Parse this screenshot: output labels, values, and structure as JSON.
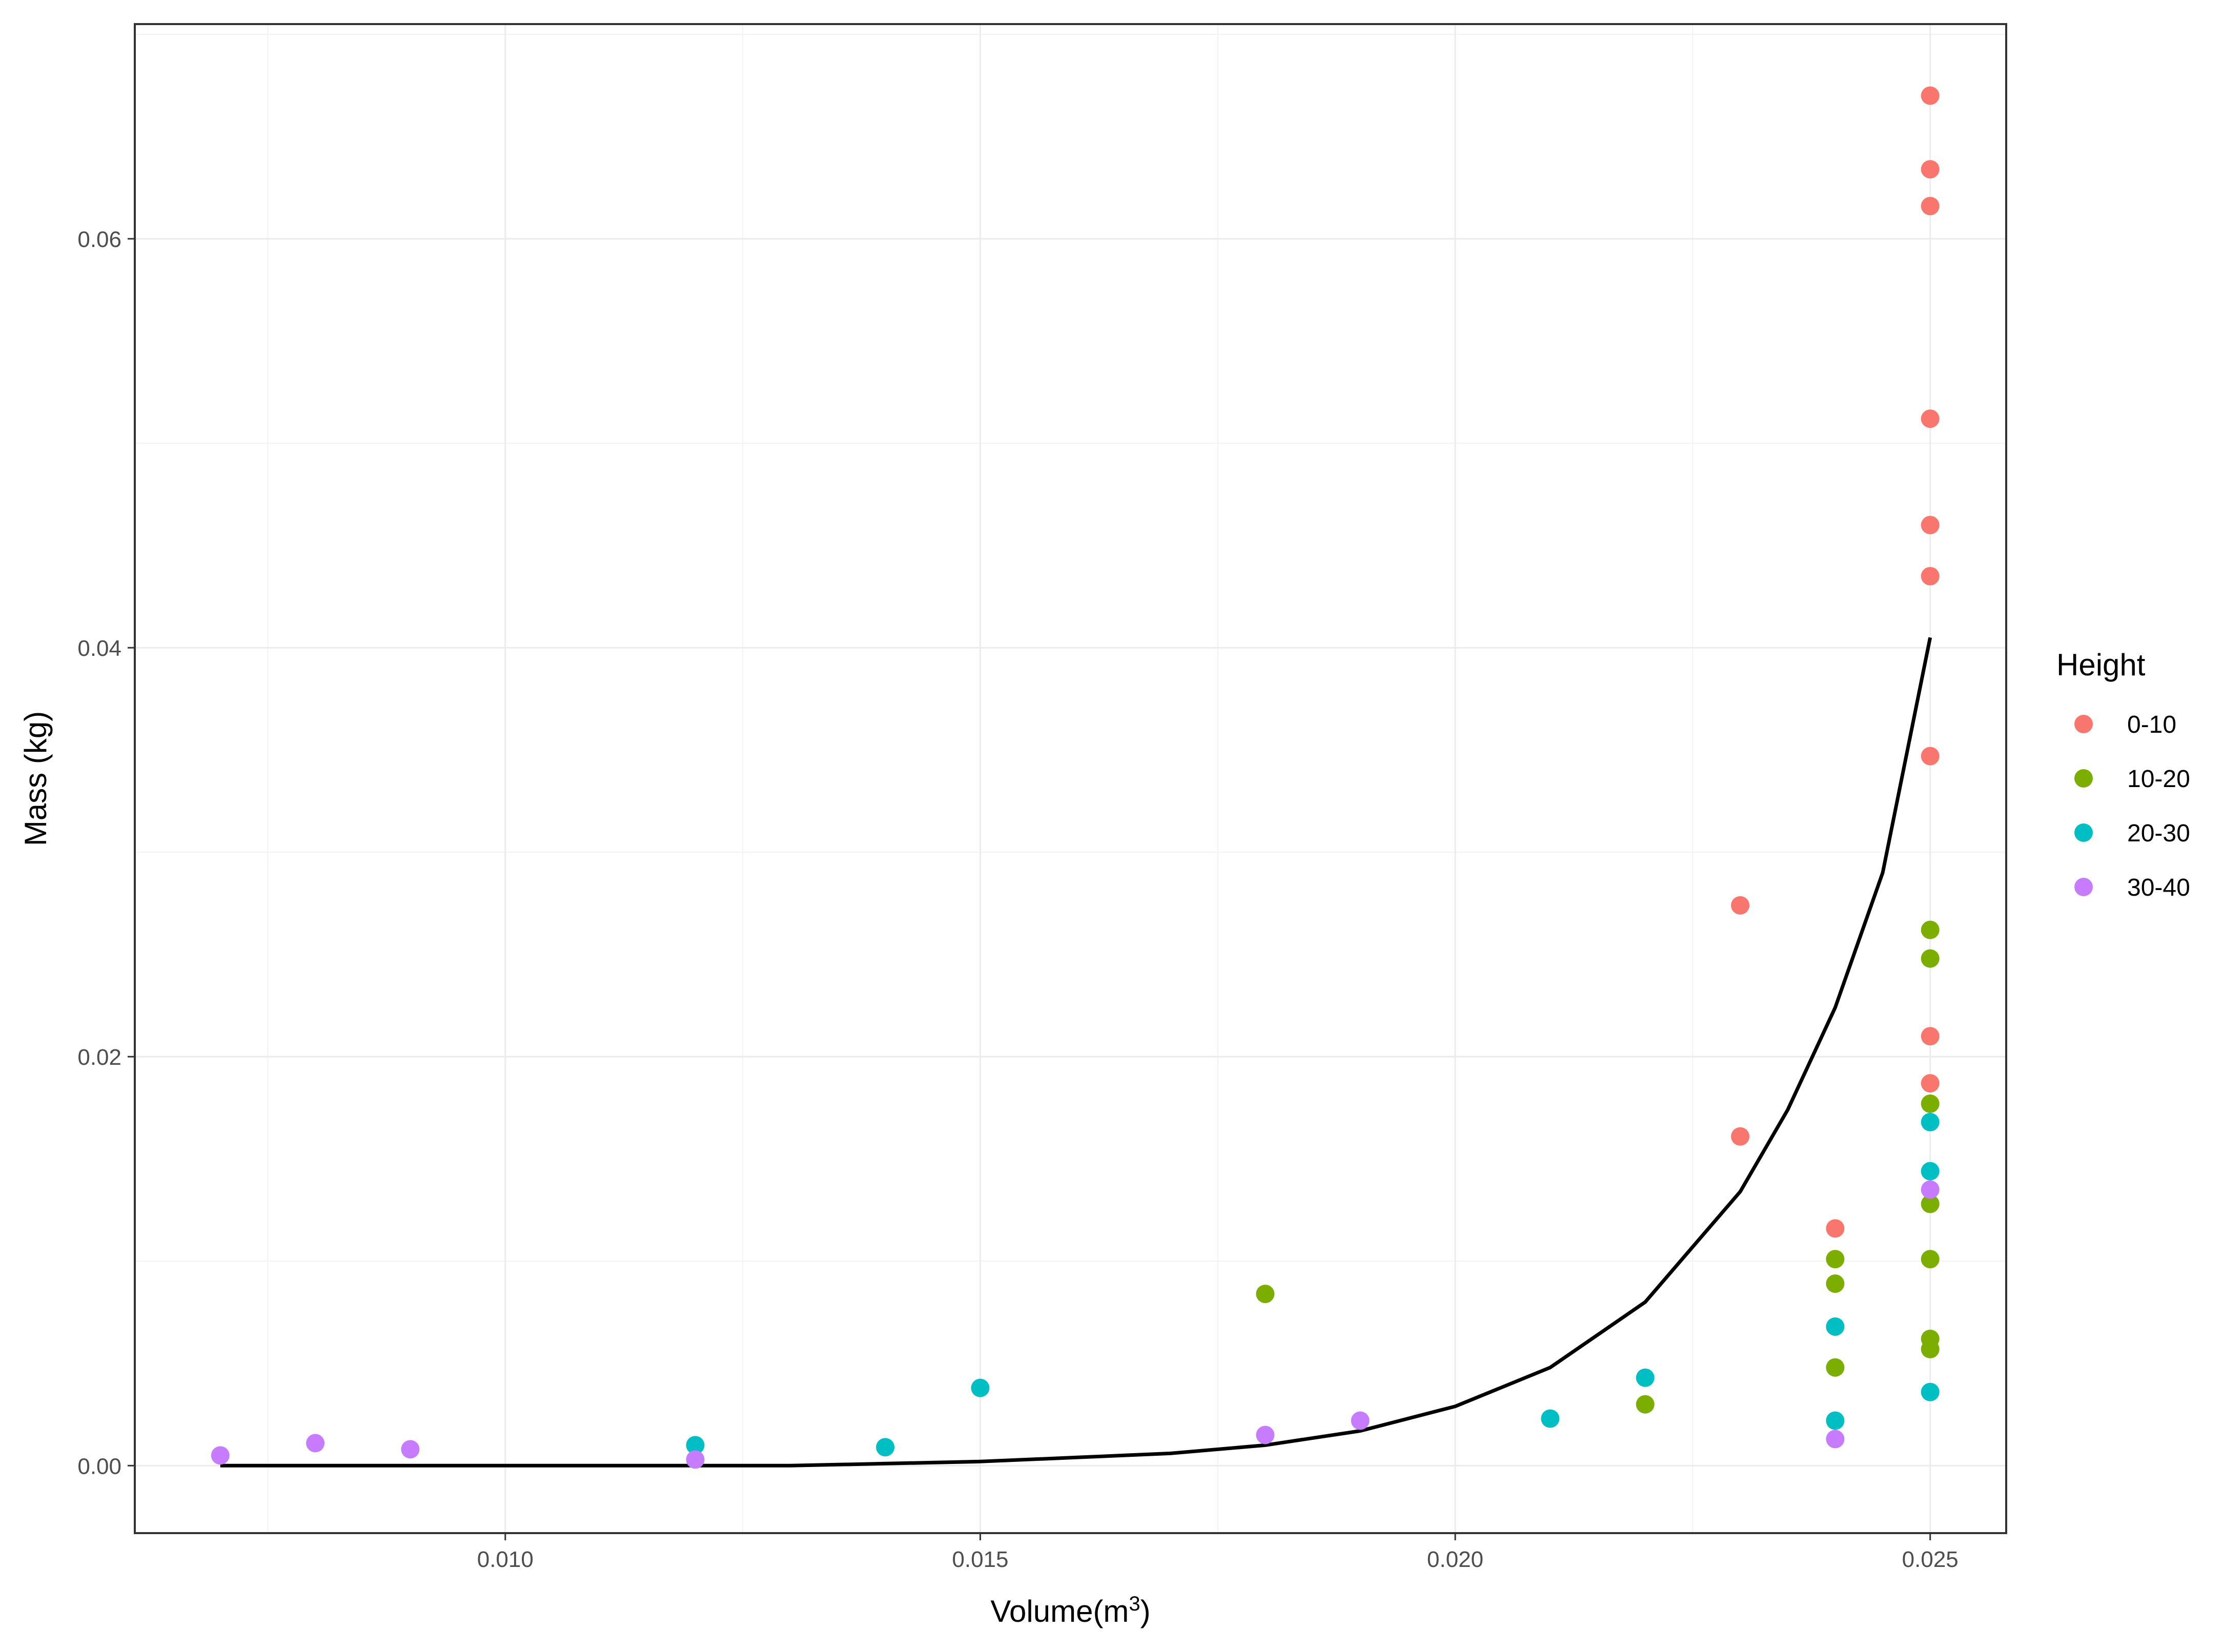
{
  "chart_data": {
    "type": "scatter",
    "title": "",
    "xlabel": "Volume(m",
    "xlabel_superscript": "3",
    "xlabel_suffix": ")",
    "ylabel": "Mass (kg)",
    "xlim": [
      0.0061,
      0.0258
    ],
    "ylim": [
      -0.0033,
      0.0705
    ],
    "x_ticks": [
      "0.010",
      "0.015",
      "0.020",
      "0.025"
    ],
    "x_tick_values": [
      0.01,
      0.015,
      0.02,
      0.025
    ],
    "y_ticks": [
      "0.00",
      "0.02",
      "0.04",
      "0.06"
    ],
    "y_tick_values": [
      0.0,
      0.02,
      0.04,
      0.06
    ],
    "grid": true,
    "legend": {
      "title": "Height",
      "placement": "right"
    },
    "series": [
      {
        "name": "0-10",
        "color": "#F8766D",
        "points": [
          [
            0.023,
            0.0274
          ],
          [
            0.023,
            0.0161
          ],
          [
            0.024,
            0.0116
          ],
          [
            0.025,
            0.067
          ],
          [
            0.025,
            0.0634
          ],
          [
            0.025,
            0.0616
          ],
          [
            0.025,
            0.0512
          ],
          [
            0.025,
            0.046
          ],
          [
            0.025,
            0.0435
          ],
          [
            0.025,
            0.0347
          ],
          [
            0.025,
            0.021
          ],
          [
            0.025,
            0.0187
          ]
        ]
      },
      {
        "name": "10-20",
        "color": "#7CAE00",
        "points": [
          [
            0.018,
            0.0084
          ],
          [
            0.022,
            0.003
          ],
          [
            0.024,
            0.0101
          ],
          [
            0.024,
            0.0089
          ],
          [
            0.024,
            0.0048
          ],
          [
            0.025,
            0.0262
          ],
          [
            0.025,
            0.0248
          ],
          [
            0.025,
            0.0177
          ],
          [
            0.025,
            0.0128
          ],
          [
            0.025,
            0.0101
          ],
          [
            0.025,
            0.0062
          ],
          [
            0.025,
            0.0057
          ]
        ]
      },
      {
        "name": "20-30",
        "color": "#00BFC4",
        "points": [
          [
            0.012,
            0.001
          ],
          [
            0.014,
            0.0009
          ],
          [
            0.015,
            0.0038
          ],
          [
            0.021,
            0.0023
          ],
          [
            0.022,
            0.0043
          ],
          [
            0.024,
            0.0068
          ],
          [
            0.024,
            0.0022
          ],
          [
            0.025,
            0.0168
          ],
          [
            0.025,
            0.0144
          ],
          [
            0.025,
            0.0036
          ]
        ]
      },
      {
        "name": "30-40",
        "color": "#C77CFF",
        "points": [
          [
            0.007,
            0.0005
          ],
          [
            0.008,
            0.0011
          ],
          [
            0.009,
            0.0008
          ],
          [
            0.012,
            0.0003
          ],
          [
            0.018,
            0.0015
          ],
          [
            0.019,
            0.0022
          ],
          [
            0.024,
            0.0013
          ],
          [
            0.025,
            0.0135
          ]
        ]
      }
    ],
    "fit_line": {
      "color": "#000000",
      "points": [
        [
          0.007,
          0.0
        ],
        [
          0.01,
          0.0
        ],
        [
          0.013,
          0.0
        ],
        [
          0.014,
          0.0001
        ],
        [
          0.015,
          0.0002
        ],
        [
          0.016,
          0.0004
        ],
        [
          0.017,
          0.0006
        ],
        [
          0.018,
          0.001
        ],
        [
          0.019,
          0.0017
        ],
        [
          0.02,
          0.0029
        ],
        [
          0.021,
          0.0048
        ],
        [
          0.022,
          0.008
        ],
        [
          0.023,
          0.0134
        ],
        [
          0.0235,
          0.0174
        ],
        [
          0.024,
          0.0224
        ],
        [
          0.0245,
          0.029
        ],
        [
          0.025,
          0.0405
        ]
      ]
    }
  }
}
